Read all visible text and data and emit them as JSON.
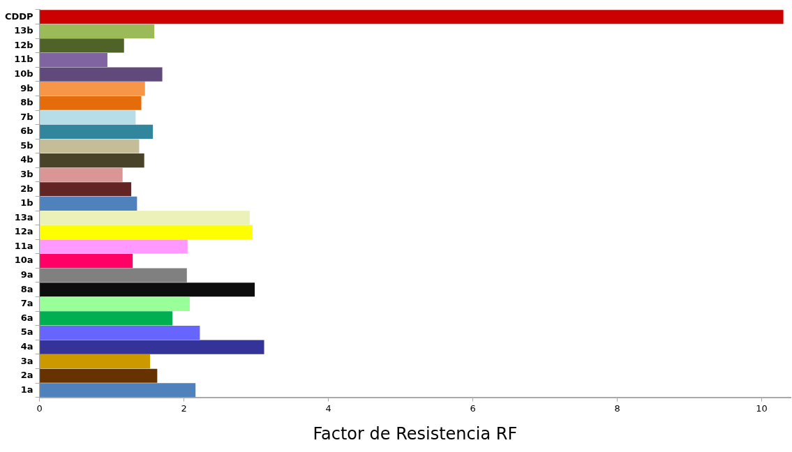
{
  "chart_data": {
    "type": "bar",
    "orientation": "horizontal",
    "xlabel": "Factor de Resistencia RF",
    "categories": [
      "CDDP",
      "13b",
      "12b",
      "11b",
      "10b",
      "9b",
      "8b",
      "7b",
      "6b",
      "5b",
      "4b",
      "3b",
      "2b",
      "1b",
      "13a",
      "12a",
      "11a",
      "10a",
      "9a",
      "8a",
      "7a",
      "6a",
      "5a",
      "4a",
      "3a",
      "2a",
      "1a"
    ],
    "values": [
      10.3,
      1.59,
      1.17,
      0.94,
      1.7,
      1.46,
      1.41,
      1.33,
      1.57,
      1.38,
      1.45,
      1.15,
      1.27,
      1.35,
      2.91,
      2.95,
      2.05,
      1.29,
      2.04,
      2.98,
      2.08,
      1.84,
      2.22,
      3.11,
      1.53,
      1.63,
      2.16
    ],
    "colors": [
      "#cc0000",
      "#9bbb59",
      "#4f6228",
      "#8064a2",
      "#604a7b",
      "#f79646",
      "#e46c0a",
      "#b7dee8",
      "#31859c",
      "#c4bd97",
      "#494429",
      "#d99694",
      "#632523",
      "#4f81bd",
      "#ebf1b8",
      "#ffff00",
      "#ff99ff",
      "#ff0066",
      "#808080",
      "#0d0d0d",
      "#99ff99",
      "#00b050",
      "#6666ff",
      "#333399",
      "#cc9900",
      "#663300",
      "#4f81bd"
    ],
    "xlim": [
      0,
      10.4
    ],
    "xticks": [
      0,
      2,
      4,
      6,
      8,
      10
    ],
    "grid": false,
    "legend": false
  }
}
